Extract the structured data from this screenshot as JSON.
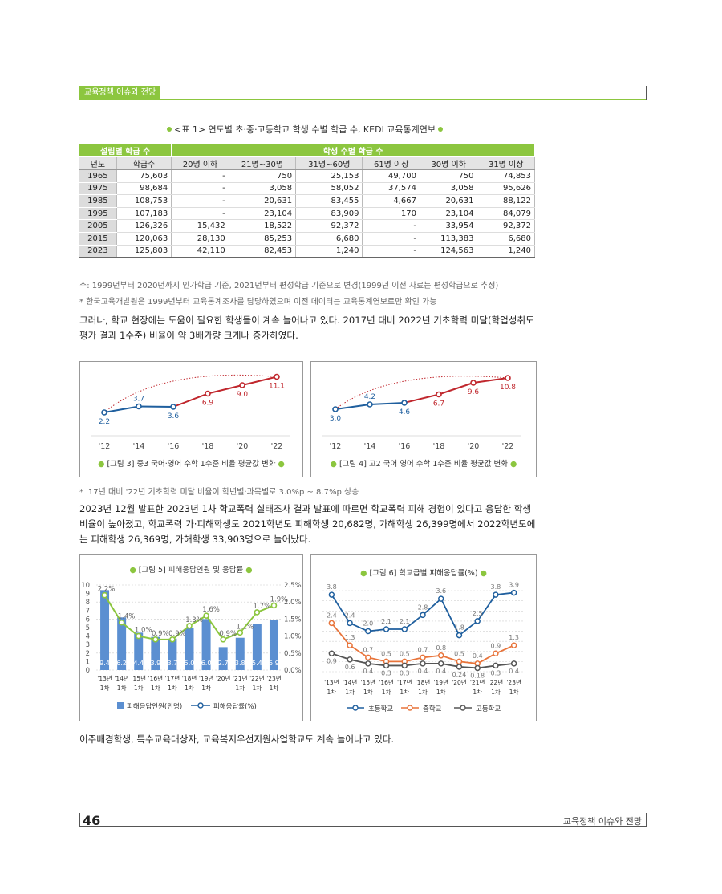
{
  "header": {
    "section_tag": "교육정책 이슈와 전망"
  },
  "table1": {
    "caption": "<표 1> 연도별 초·중·고등학교 학생 수별 학급 수, KEDI 교육통계연보",
    "group_left": "설립별 학급 수",
    "group_right": "학생 수별 학급 수",
    "columns": [
      "년도",
      "학급수",
      "20명 이하",
      "21명~30명",
      "31명~60명",
      "61명 이상",
      "30명 이하",
      "31명 이상"
    ],
    "rows": [
      [
        "1965",
        "75,603",
        "-",
        "750",
        "25,153",
        "49,700",
        "750",
        "74,853"
      ],
      [
        "1975",
        "98,684",
        "-",
        "3,058",
        "58,052",
        "37,574",
        "3,058",
        "95,626"
      ],
      [
        "1985",
        "108,753",
        "-",
        "20,631",
        "83,455",
        "4,667",
        "20,631",
        "88,122"
      ],
      [
        "1995",
        "107,183",
        "-",
        "23,104",
        "83,909",
        "170",
        "23,104",
        "84,079"
      ],
      [
        "2005",
        "126,326",
        "15,432",
        "18,522",
        "92,372",
        "-",
        "33,954",
        "92,372"
      ],
      [
        "2015",
        "120,063",
        "28,130",
        "85,253",
        "6,680",
        "-",
        "113,383",
        "6,680"
      ],
      [
        "2023",
        "125,803",
        "42,110",
        "82,453",
        "1,240",
        "-",
        "124,563",
        "1,240"
      ]
    ],
    "note1": "주: 1999년부터 2020년까지 인가학급 기준, 2021년부터 편성학급 기준으로 변경(1999년 이전 자료는 편성학급으로 추정)",
    "note2": "* 한국교육개발원은 1999년부터 교육통계조사를 담당하였으며 이전 데이터는 교육통계연보로만 확인 가능"
  },
  "para1": "그러나, 학교 현장에는 도움이 필요한 학생들이 계속 늘어나고 있다.  2017년 대비 2022년 기초학력 미달(학업성취도 평가 결과 1수준) 비율이 약 3배가량 크게나 증가하였다.",
  "note3": "* '17년 대비 '22년 기초학력 미달 비율이 학년별·과목별로 3.0%p ~ 8.7%p 상승",
  "para2": "2023년 12월 발표한 2023년 1차 학교폭력 실태조사 결과 발표에 따르면 학교폭력 피해 경험이 있다고 응답한 학생 비율이 높아졌고, 학교폭력 가·피해학생도 2021학년도 피해학생 20,682명, 가해학생 26,399명에서 2022학년도에는 피해학생 26,369명, 가해학생 33,903명으로 늘어났다.",
  "para3": "이주배경학생, 특수교육대상자, 교육복지우선지원사업학교도 계속 늘어나고 있다.",
  "footer": {
    "page_number": "46",
    "title": "교육정책 이슈와 전망"
  },
  "colors": {
    "accent": "#8cc63f",
    "blue": "#1f5f9e",
    "red": "#c0272d",
    "orange": "#e8743b",
    "gray": "#555555",
    "bar": "#5b8fd1",
    "line": "#8cc63f"
  },
  "chart_data": [
    {
      "type": "line",
      "title": "[그림 3] 중3 국어·영어 수학 1수준 비율 평균값 변화",
      "categories": [
        "'12",
        "'14",
        "'16",
        "'18",
        "'20",
        "'22"
      ],
      "values": [
        2.2,
        3.7,
        3.6,
        6.9,
        9.0,
        11.1
      ],
      "labels": [
        "2.2",
        "3.7",
        "3.6",
        "6.9",
        "9.0",
        "11.1"
      ],
      "ylim": [
        0,
        12
      ]
    },
    {
      "type": "line",
      "title": "[그림 4] 고2 국어 영어 수학 1수준 비율 평균값 변화",
      "categories": [
        "'12",
        "'14",
        "'16",
        "'18",
        "'20",
        "'22"
      ],
      "values": [
        3.0,
        4.2,
        4.6,
        6.7,
        9.6,
        10.8
      ],
      "labels": [
        "3.0",
        "4.2",
        "4.6",
        "6.7",
        "9.6",
        "10.8"
      ],
      "ylim": [
        0,
        12
      ]
    },
    {
      "type": "bar",
      "title": "[그림 5] 피해응답인원 및 응답률",
      "categories": [
        "'13년 1차",
        "'14년 1차",
        "'15년 1차",
        "'16년 1차",
        "'17년 1차",
        "'18년 1차",
        "'19년 1차",
        "'20년",
        "'21년 1차",
        "'22년 1차",
        "'23년 1차"
      ],
      "series": [
        {
          "name": "피해응답인원(만명)",
          "values": [
            9.4,
            6.2,
            4.4,
            3.9,
            3.7,
            5.0,
            6.0,
            2.7,
            3.8,
            5.4,
            5.9
          ]
        },
        {
          "name": "피해응답률(%)",
          "values": [
            2.2,
            1.4,
            1.0,
            0.9,
            0.9,
            1.3,
            1.6,
            0.9,
            1.1,
            1.7,
            1.9
          ]
        }
      ],
      "bar_labels": [
        "9.4",
        "6.2",
        "4.4",
        "3.9",
        "3.7",
        "5.0",
        "6.0",
        "2.7",
        "3.8",
        "5.4",
        "5.9"
      ],
      "rate_labels": [
        "2.2%",
        "1.4%",
        "1.0%",
        "0.9%",
        "0.9%",
        "1.3%",
        "1.6%",
        "0.9%",
        "1.1%",
        "1.7%",
        "1.9%"
      ],
      "left_ticks": [
        "0",
        "1",
        "2",
        "3",
        "4",
        "5",
        "6",
        "7",
        "8",
        "9",
        "10"
      ],
      "right_ticks": [
        "0.0%",
        "0.5%",
        "1.0%",
        "1.5%",
        "2.0%",
        "2.5%"
      ],
      "ylim_left": [
        0,
        10
      ],
      "ylim_right": [
        0,
        2.5
      ]
    },
    {
      "type": "line",
      "title": "[그림 6] 학교급별 피해응답률(%)",
      "categories": [
        "'13년 1차",
        "'14년 1차",
        "'15년 1차",
        "'16년 1차",
        "'17년 1차",
        "'18년 1차",
        "'19년 1차",
        "'20년",
        "'21년 1차",
        "'22년 1차",
        "'23년 1차"
      ],
      "series": [
        {
          "name": "초등학교",
          "values": [
            3.8,
            2.4,
            2.0,
            2.1,
            2.1,
            2.8,
            3.6,
            1.8,
            2.5,
            3.8,
            3.9
          ],
          "labels": [
            "3.8",
            "2.4",
            "2.0",
            "2.1",
            "2.1",
            "2.8",
            "3.6",
            "1.8",
            "2.5",
            "3.8",
            "3.9"
          ]
        },
        {
          "name": "중학교",
          "values": [
            2.4,
            1.3,
            0.7,
            0.5,
            0.5,
            0.7,
            0.8,
            0.5,
            0.4,
            0.9,
            1.3
          ],
          "labels": [
            "2.4",
            "1.3",
            "0.7",
            "0.5",
            "0.5",
            "0.7",
            "0.8",
            "0.5",
            "0.4",
            "0.9",
            "1.3"
          ]
        },
        {
          "name": "고등학교",
          "values": [
            0.9,
            0.6,
            0.4,
            0.3,
            0.3,
            0.4,
            0.4,
            0.24,
            0.18,
            0.3,
            0.4
          ],
          "labels": [
            "0.9",
            "0.6",
            "0.4",
            "0.3",
            "0.3",
            "0.4",
            "0.4",
            "0.24",
            "0.18",
            "0.3",
            "0.4"
          ]
        }
      ],
      "ylim": [
        0,
        4.2
      ]
    }
  ]
}
